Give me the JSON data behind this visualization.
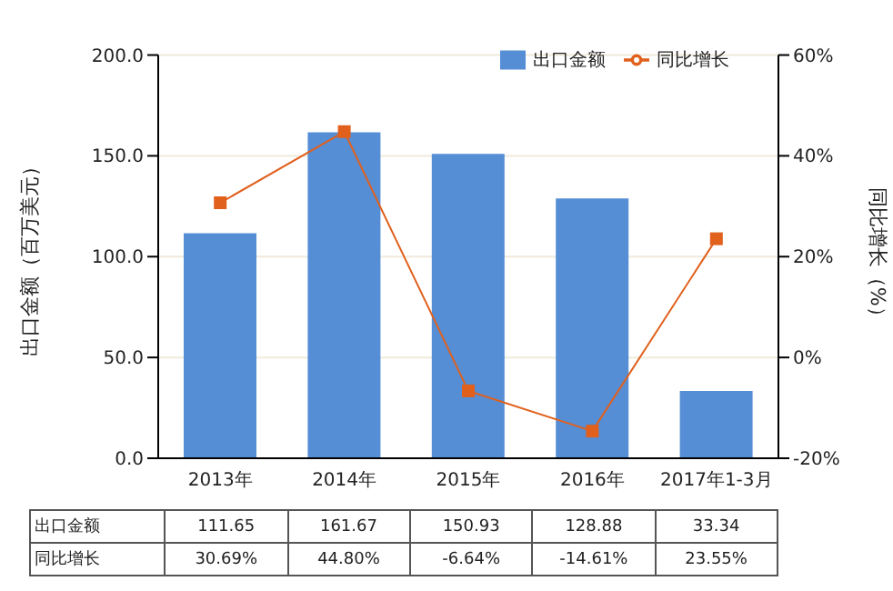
{
  "chart_data": {
    "type": "bar",
    "categories": [
      "2013年",
      "2014年",
      "2015年",
      "2016年",
      "2017年1-3月"
    ],
    "series": [
      {
        "name": "出口金额",
        "color": "#558ed5",
        "values": [
          111.65,
          161.67,
          150.93,
          128.88,
          33.34
        ],
        "value_labels": [
          "111.65",
          "161.67",
          "150.93",
          "128.88",
          "33.34"
        ]
      },
      {
        "name": "同比增长",
        "type": "line",
        "axis": "y2",
        "color": "#e0601c",
        "marker": "square",
        "values": [
          30.69,
          44.8,
          -6.64,
          -14.61,
          23.55
        ],
        "value_labels": [
          "30.69%",
          "44.80%",
          "-6.64%",
          "-14.61%",
          "23.55%"
        ]
      }
    ],
    "ylabel": "出口金额（百万美元）",
    "y2label": "同比增长（%）",
    "ylim": [
      0,
      200
    ],
    "yticks": [
      {
        "value": 0,
        "label": "0.0"
      },
      {
        "value": 50,
        "label": "50.0"
      },
      {
        "value": 100,
        "label": "100.0"
      },
      {
        "value": 150,
        "label": "150.0"
      },
      {
        "value": 200,
        "label": "200.0"
      }
    ],
    "y2lim": [
      -20,
      60
    ],
    "y2ticks": [
      {
        "value": -20,
        "label": "-20%"
      },
      {
        "value": 0,
        "label": "0%"
      },
      {
        "value": 20,
        "label": "20%"
      },
      {
        "value": 40,
        "label": "40%"
      },
      {
        "value": 60,
        "label": "60%"
      }
    ],
    "grid": "y",
    "legend": "top right"
  }
}
